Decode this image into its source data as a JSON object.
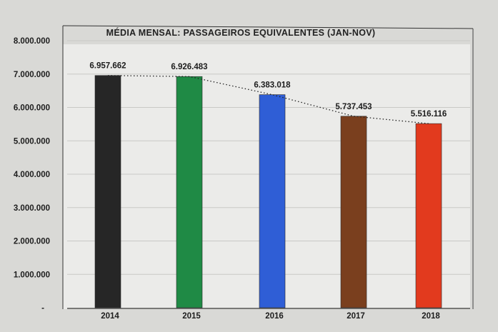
{
  "chart_data": {
    "type": "bar",
    "title": "MÉDIA MENSAL: PASSAGEIROS EQUIVALENTES (JAN-NOV)",
    "categories": [
      "2014",
      "2015",
      "2016",
      "2017",
      "2018"
    ],
    "values": [
      6957662,
      6926483,
      6383018,
      5737453,
      5516116
    ],
    "data_labels": [
      "6.957.662",
      "6.926.483",
      "6.383.018",
      "5.737.453",
      "5.516.116"
    ],
    "bar_colors": [
      "#262626",
      "#1f8a45",
      "#2f5ed6",
      "#7a3f1e",
      "#e23a1e"
    ],
    "ylim": [
      0,
      8000000
    ],
    "yticks": [
      {
        "value": 0,
        "label": "-"
      },
      {
        "value": 1000000,
        "label": "1.000.000"
      },
      {
        "value": 2000000,
        "label": "2.000.000"
      },
      {
        "value": 3000000,
        "label": "3.000.000"
      },
      {
        "value": 4000000,
        "label": "4.000.000"
      },
      {
        "value": 5000000,
        "label": "5.000.000"
      },
      {
        "value": 6000000,
        "label": "6.000.000"
      },
      {
        "value": 7000000,
        "label": "7.000.000"
      },
      {
        "value": 8000000,
        "label": "8.000.000"
      }
    ],
    "trendline": "dotted",
    "grid": true,
    "legend": "none",
    "xlabel": "",
    "ylabel": ""
  }
}
